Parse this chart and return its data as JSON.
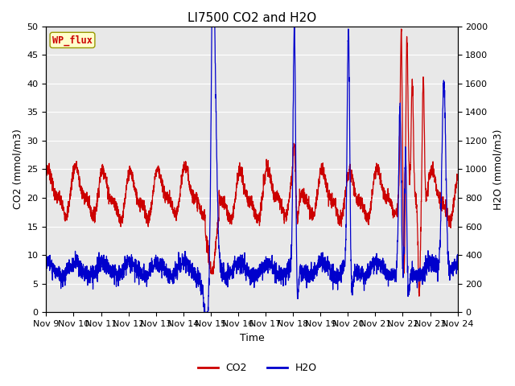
{
  "title": "LI7500 CO2 and H2O",
  "xlabel": "Time",
  "ylabel_left": "CO2 (mmol/m3)",
  "ylabel_right": "H2O (mmol/m3)",
  "annotation": "WP_flux",
  "ylim_left": [
    0,
    50
  ],
  "ylim_right": [
    0,
    2000
  ],
  "yticks_left": [
    0,
    5,
    10,
    15,
    20,
    25,
    30,
    35,
    40,
    45,
    50
  ],
  "yticks_right": [
    0,
    200,
    400,
    600,
    800,
    1000,
    1200,
    1400,
    1600,
    1800,
    2000
  ],
  "xtick_labels": [
    "Nov 9",
    "Nov 10",
    "Nov 11",
    "Nov 12",
    "Nov 13",
    "Nov 14",
    "Nov 15",
    "Nov 16",
    "Nov 17",
    "Nov 18",
    "Nov 19",
    "Nov 20",
    "Nov 21",
    "Nov 22",
    "Nov 23",
    "Nov 24"
  ],
  "co2_color": "#cc0000",
  "h2o_color": "#0000cc",
  "background_color": "#e8e8e8",
  "figure_facecolor": "#ffffff",
  "annotation_facecolor": "#ffffcc",
  "annotation_edgecolor": "#999900",
  "annotation_textcolor": "#cc0000",
  "title_fontsize": 11,
  "axis_label_fontsize": 9,
  "tick_fontsize": 8,
  "legend_fontsize": 9
}
